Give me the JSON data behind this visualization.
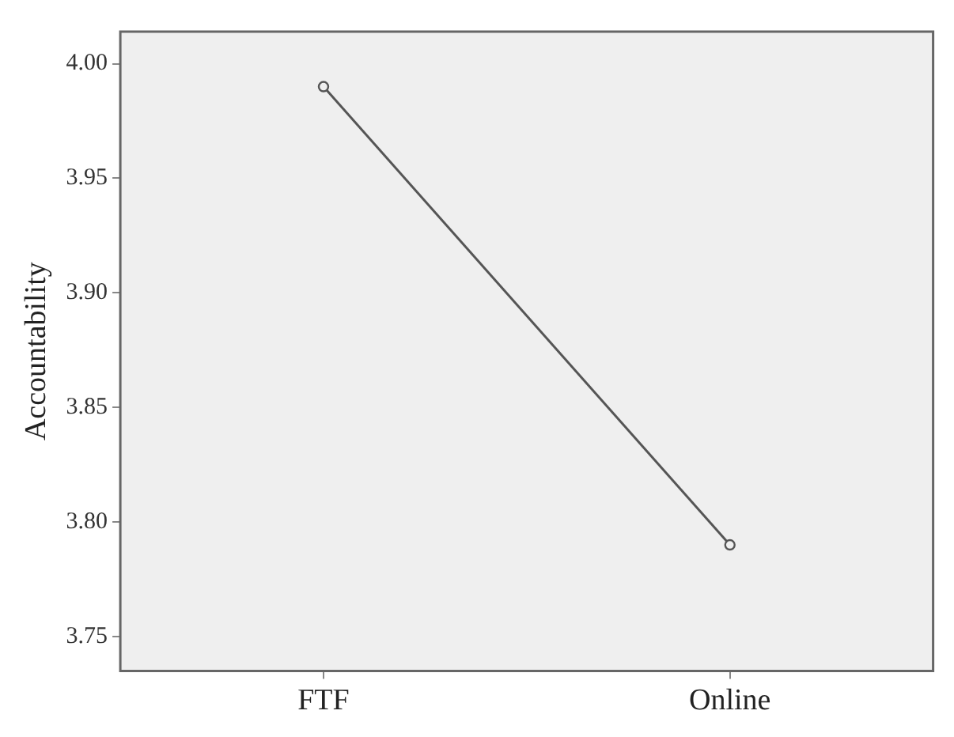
{
  "chart_data": {
    "type": "line",
    "ylabel": "Accountability",
    "categories": [
      "FTF",
      "Online"
    ],
    "series": [
      {
        "color": "#555555",
        "values": [
          3.99,
          3.79
        ]
      }
    ],
    "ylim": [
      3.735,
      4.014
    ],
    "yticks": [
      {
        "value": 3.75,
        "label": "3.75"
      },
      {
        "value": 3.8,
        "label": "3.80"
      },
      {
        "value": 3.85,
        "label": "3.85"
      },
      {
        "value": 3.9,
        "label": "3.90"
      },
      {
        "value": 3.95,
        "label": "3.95"
      },
      {
        "value": 4,
        "label": "4.00"
      }
    ],
    "grid": false,
    "legend": false,
    "marker": "circle",
    "line_style": "solid"
  }
}
